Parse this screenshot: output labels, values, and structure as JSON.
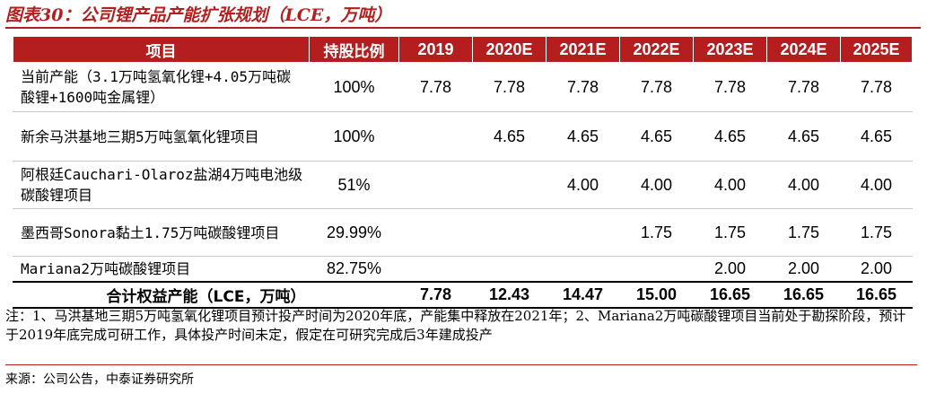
{
  "title": "图表30：公司锂产品产能扩张规划（LCE，万吨）",
  "table": {
    "headers": [
      "项目",
      "持股比例",
      "2019",
      "2020E",
      "2021E",
      "2022E",
      "2023E",
      "2024E",
      "2025E"
    ],
    "rows": [
      {
        "name": "当前产能（3.1万吨氢氧化锂+4.05万吨碳酸锂+1600吨金属锂）",
        "share": "100%",
        "values": [
          "7.78",
          "7.78",
          "7.78",
          "7.78",
          "7.78",
          "7.78",
          "7.78"
        ]
      },
      {
        "name": "新余马洪基地三期5万吨氢氧化锂项目",
        "share": "100%",
        "values": [
          "",
          "4.65",
          "4.65",
          "4.65",
          "4.65",
          "4.65",
          "4.65"
        ]
      },
      {
        "name": "阿根廷Cauchari-Olaroz盐湖4万吨电池级碳酸锂项目",
        "share": "51%",
        "values": [
          "",
          "",
          "4.00",
          "4.00",
          "4.00",
          "4.00",
          "4.00"
        ]
      },
      {
        "name": "墨西哥Sonora黏土1.75万吨碳酸锂项目",
        "share": "29.99%",
        "values": [
          "",
          "",
          "",
          "1.75",
          "1.75",
          "1.75",
          "1.75"
        ]
      },
      {
        "name": "Mariana2万吨碳酸锂项目",
        "share": "82.75%",
        "values": [
          "",
          "",
          "",
          "",
          "2.00",
          "2.00",
          "2.00"
        ]
      }
    ],
    "total": {
      "label": "合计权益产能（LCE，万吨）",
      "values": [
        "7.78",
        "12.43",
        "14.47",
        "15.00",
        "16.65",
        "16.65",
        "16.65"
      ]
    }
  },
  "note": "注：1、马洪基地三期5万吨氢氧化锂项目预计投产时间为2020年底，产能集中释放在2021年；2、Mariana2万吨碳酸锂项目当前处于勘探阶段，预计于2019年底完成可研工作，具体投产时间未定，假定在可研究完成后3年建成投产",
  "source": "来源：公司公告，中泰证券研究所",
  "colors": {
    "accent": "#b41e1e"
  }
}
